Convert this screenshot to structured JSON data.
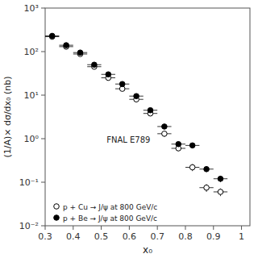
{
  "chart_data": {
    "type": "scatter",
    "xlabel": "x₀",
    "ylabel": "(1/A)× dσ/dx₀ (nb)",
    "annotation": "FNAL E789",
    "log": "y",
    "grid": false,
    "legend": "lower left",
    "xlim": [
      0.3,
      1.03
    ],
    "xticks": [
      0.3,
      0.4,
      0.5,
      0.6,
      0.7,
      0.8,
      0.9,
      1.0
    ],
    "ylim": [
      0.01,
      1000
    ],
    "yticks": [
      {
        "value": 0.01,
        "label": "10⁻²"
      },
      {
        "value": 0.1,
        "label": "10⁻¹"
      },
      {
        "value": 1,
        "label": "10⁰"
      },
      {
        "value": 10,
        "label": "10¹"
      },
      {
        "value": 100,
        "label": "10²"
      },
      {
        "value": 1000,
        "label": "10³"
      }
    ],
    "x": [
      0.325,
      0.375,
      0.425,
      0.475,
      0.525,
      0.575,
      0.625,
      0.675,
      0.725,
      0.775,
      0.825,
      0.875,
      0.925
    ],
    "series": [
      {
        "name": "p + Cu → J/ψ at 800 GeV/c",
        "color": "#000000",
        "marker": "open-circle",
        "values": [
          220,
          130,
          88,
          45,
          25,
          14,
          8.0,
          3.8,
          1.3,
          0.6,
          0.22,
          0.075,
          0.06
        ],
        "xerr": [
          0.025,
          0.025,
          0.025,
          0.025,
          0.025,
          0.025,
          0.025,
          0.025,
          0.025,
          0.025,
          0.025,
          0.025,
          0.025
        ],
        "yerr": [
          15,
          10,
          7,
          4,
          2,
          1.5,
          0.8,
          0.4,
          0.2,
          0.08,
          0.04,
          0.015,
          0.012
        ]
      },
      {
        "name": "p + Be → J/ψ at 800 GeV/c",
        "color": "#000000",
        "marker": "circle",
        "values": [
          230,
          140,
          95,
          50,
          30,
          18,
          9.5,
          4.5,
          1.9,
          0.75,
          0.7,
          0.2,
          0.12
        ],
        "xerr": [
          0.025,
          0.025,
          0.025,
          0.025,
          0.025,
          0.025,
          0.025,
          0.025,
          0.025,
          0.025,
          0.025,
          0.025,
          0.025
        ],
        "yerr": [
          15,
          10,
          7,
          4,
          2.5,
          1.5,
          1.0,
          0.5,
          0.25,
          0.1,
          0.08,
          0.03,
          0.02
        ]
      }
    ]
  }
}
